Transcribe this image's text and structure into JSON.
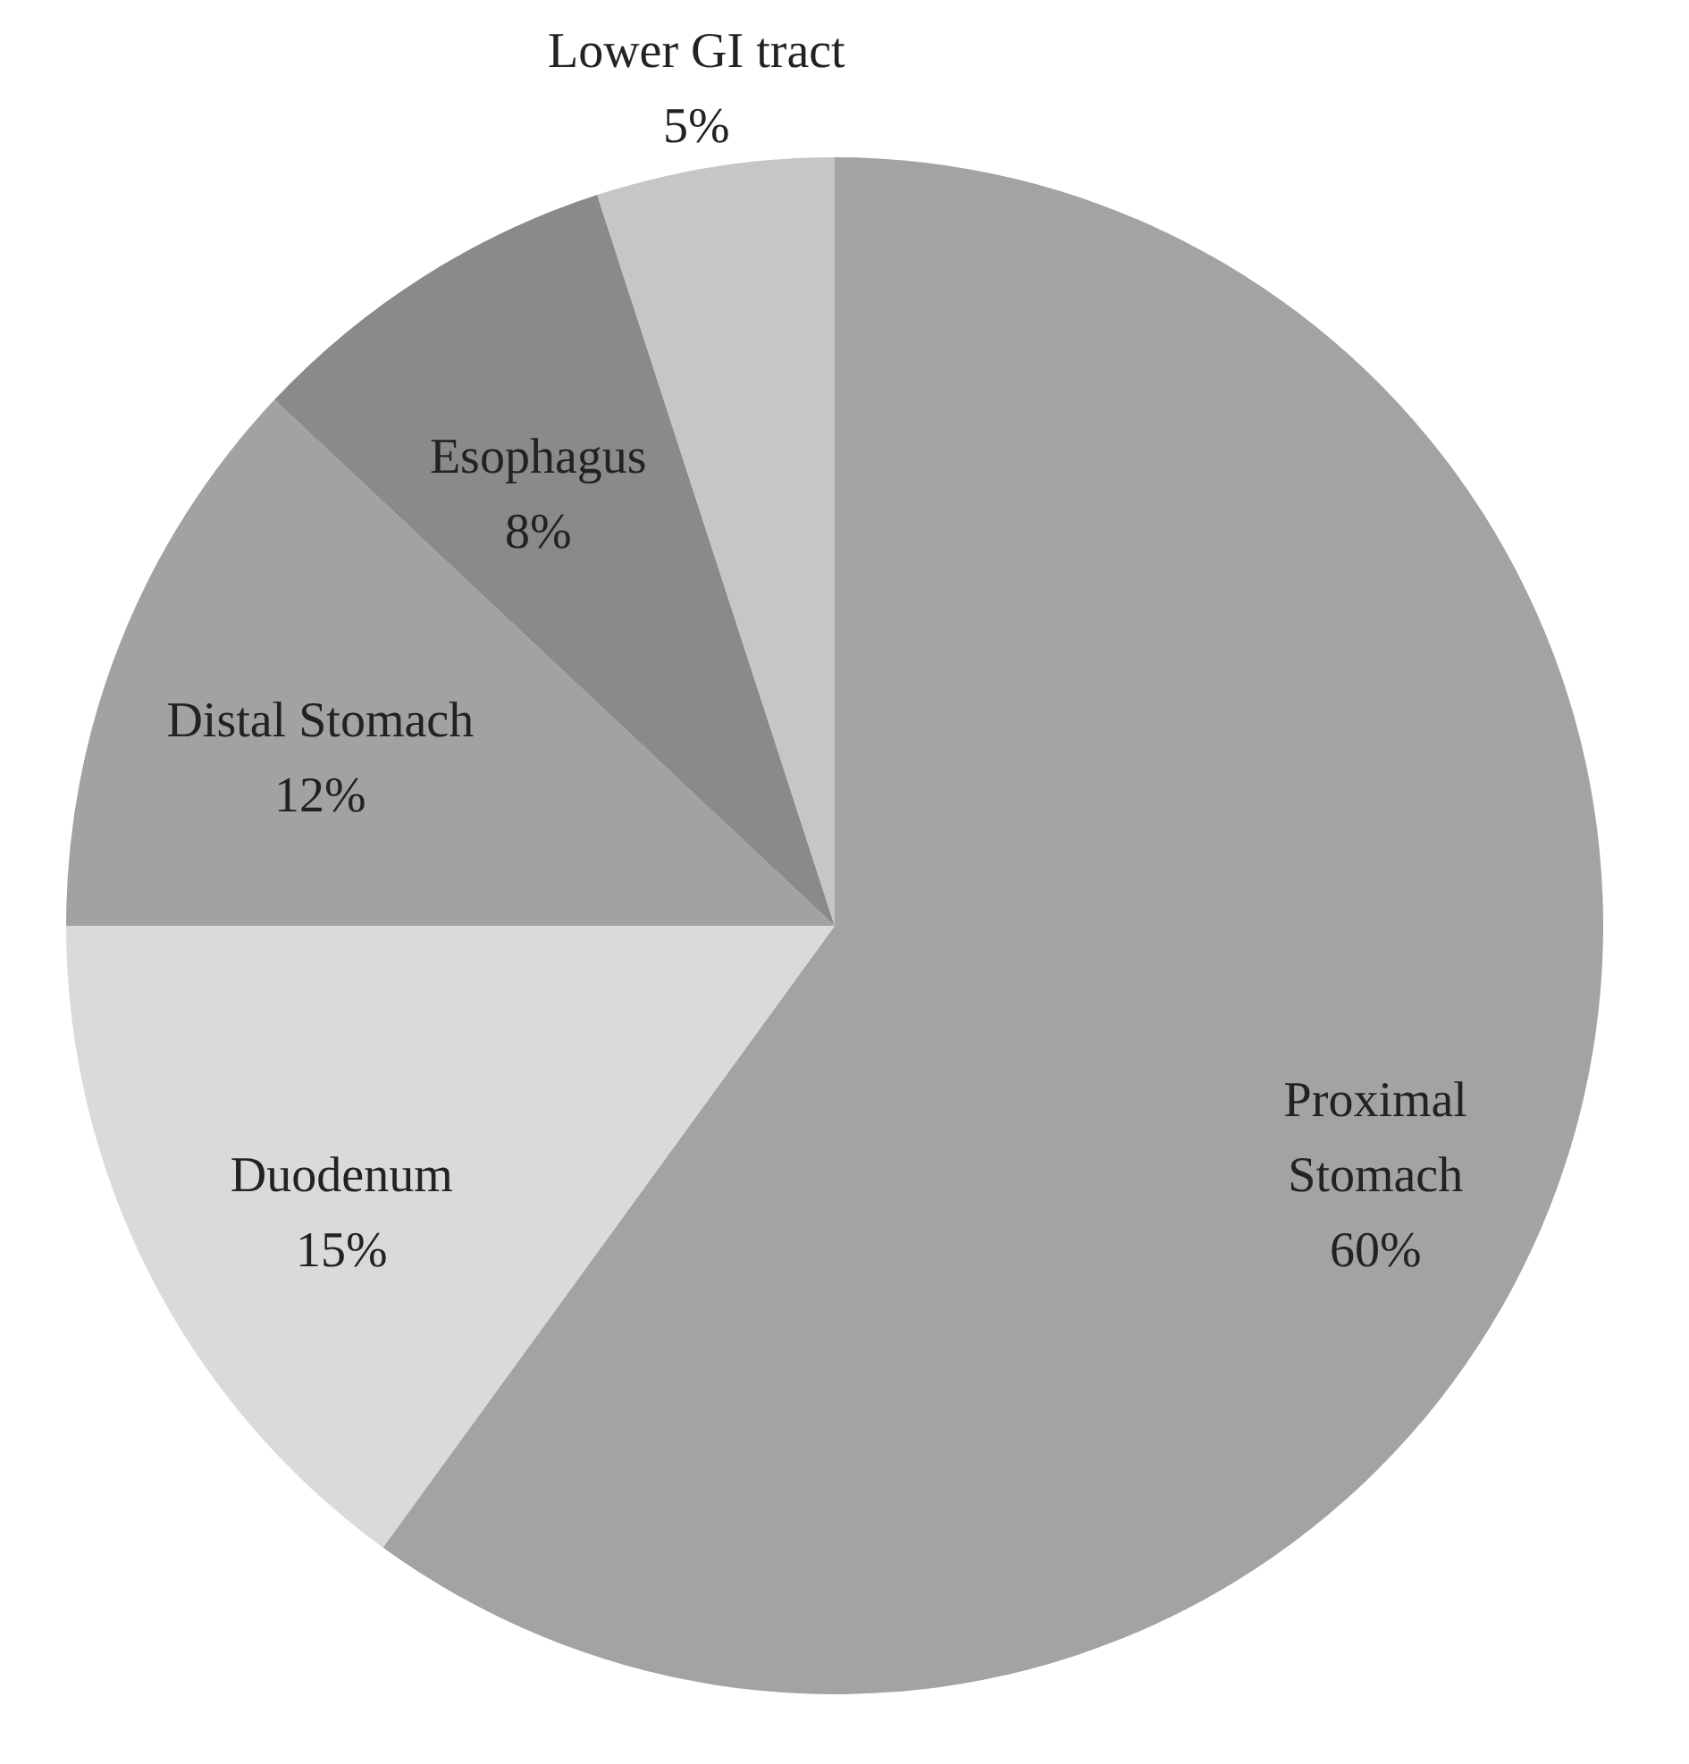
{
  "chart_data": {
    "type": "pie",
    "categories": [
      "Proximal Stomach",
      "Duodenum",
      "Distal Stomach",
      "Esophagus",
      "Lower GI tract"
    ],
    "values": [
      60,
      15,
      12,
      8,
      5
    ],
    "value_labels": [
      "60%",
      "15%",
      "12%",
      "8%",
      "5%"
    ],
    "colors": [
      "#a3a3a3",
      "#dadada",
      "#a2a2a2",
      "#8a8a8a",
      "#c6c6c6"
    ]
  }
}
